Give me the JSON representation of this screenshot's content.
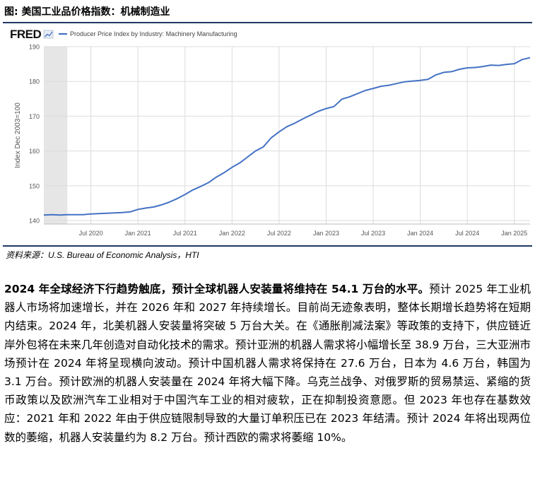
{
  "figure": {
    "title": "图: 美国工业品价格指数：机械制造业",
    "source": "资料来源：U.S. Bureau of Economic Analysis，HTI"
  },
  "chart_data": {
    "type": "line",
    "brand": "FRED",
    "legend": "Producer Price Index by Industry: Machinery Manufacturing",
    "legend_position": "top-left",
    "ylabel": "Index Dec 2003=100",
    "ylim": [
      139,
      190
    ],
    "yticks": [
      140,
      150,
      160,
      170,
      180,
      190
    ],
    "xlim": [
      "2020-01",
      "2025-03"
    ],
    "xticks": [
      "Jul 2020",
      "Jan 2021",
      "Jul 2021",
      "Jan 2022",
      "Jul 2022",
      "Jan 2023",
      "Jul 2023",
      "Jan 2024",
      "Jul 2024",
      "Jan 2025"
    ],
    "recession_shading": [
      "2020-01",
      "2020-04"
    ],
    "grid": true,
    "line_color": "#4472c4",
    "series": [
      {
        "x": [
          "2020-01",
          "2020-02",
          "2020-03",
          "2020-04",
          "2020-05",
          "2020-06",
          "2020-07",
          "2020-08",
          "2020-09",
          "2020-10",
          "2020-11",
          "2020-12",
          "2021-01",
          "2021-02",
          "2021-03",
          "2021-04",
          "2021-05",
          "2021-06",
          "2021-07",
          "2021-08",
          "2021-09",
          "2021-10",
          "2021-11",
          "2021-12",
          "2022-01",
          "2022-02",
          "2022-03",
          "2022-04",
          "2022-05",
          "2022-06",
          "2022-07",
          "2022-08",
          "2022-09",
          "2022-10",
          "2022-11",
          "2022-12",
          "2023-01",
          "2023-02",
          "2023-03",
          "2023-04",
          "2023-05",
          "2023-06",
          "2023-07",
          "2023-08",
          "2023-09",
          "2023-10",
          "2023-11",
          "2023-12",
          "2024-01",
          "2024-02",
          "2024-03",
          "2024-04",
          "2024-05",
          "2024-06",
          "2024-07",
          "2024-08",
          "2024-09",
          "2024-10",
          "2024-11",
          "2024-12",
          "2025-01",
          "2025-02",
          "2025-03"
        ],
        "values": [
          141.6,
          141.7,
          141.6,
          141.7,
          141.7,
          141.7,
          141.9,
          142.0,
          142.1,
          142.2,
          142.3,
          142.5,
          143.2,
          143.6,
          143.9,
          144.5,
          145.3,
          146.3,
          147.5,
          148.8,
          149.8,
          150.9,
          152.5,
          153.8,
          155.3,
          156.6,
          158.3,
          160.0,
          161.2,
          163.8,
          165.5,
          167.0,
          168.0,
          169.2,
          170.3,
          171.4,
          172.2,
          172.8,
          174.9,
          175.6,
          176.5,
          177.4,
          178.0,
          178.6,
          178.9,
          179.4,
          179.9,
          180.1,
          180.3,
          180.6,
          181.9,
          182.6,
          182.8,
          183.5,
          183.9,
          184.0,
          184.3,
          184.7,
          184.6,
          184.9,
          185.1,
          186.3,
          186.8
        ]
      }
    ]
  },
  "paragraph": {
    "lead": "2024 年全球经济下行趋势触底，预计全球机器人安装量将维持在 54.1 万台的水平。",
    "body": "预计 2025 年工业机器人市场将加速增长，并在 2026 年和 2027 年持续增长。目前尚无迹象表明，整体长期增长趋势将在短期内结束。2024 年，北美机器人安装量将突破 5 万台大关。在《通胀削减法案》等政策的支持下，供应链近岸外包将在未来几年创造对自动化技术的需求。预计亚洲的机器人需求将小幅增长至 38.9 万台，三大亚洲市场预计在 2024 年将呈现横向波动。预计中国机器人需求将保持在 27.6 万台，日本为 4.6 万台，韩国为 3.1 万台。预计欧洲的机器人安装量在 2024 年将大幅下降。乌克兰战争、对俄罗斯的贸易禁运、紧缩的货币政策以及欧洲汽车工业相对于中国汽车工业的相对疲软，正在抑制投资意愿。但 2023 年也存在基数效应：2021 年和 2022 年由于供应链限制导致的大量订单积压已在 2023 年结清。预计 2024 年将出现两位数的萎缩，机器人安装量约为 8.2 万台。预计西欧的需求将萎缩 10%。"
  }
}
